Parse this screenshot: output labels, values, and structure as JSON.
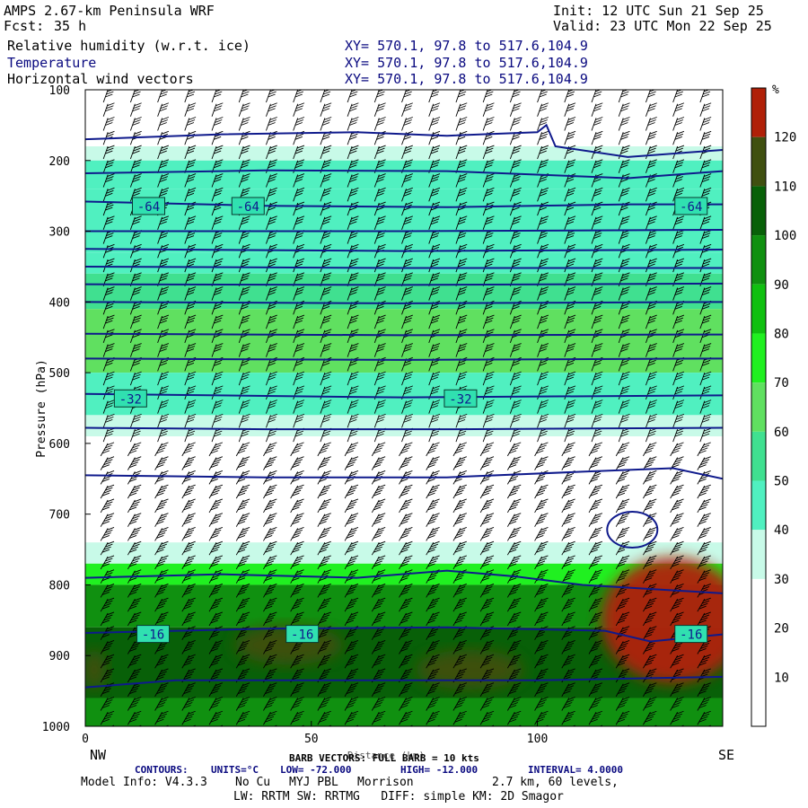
{
  "header": {
    "title": "AMPS 2.67-km Peninsula WRF",
    "fcst_label": "Fcst:",
    "fcst_value": "35 h",
    "init": "Init: 12 UTC Sun 21 Sep 25",
    "valid": "Valid: 23 UTC Mon 22 Sep 25"
  },
  "fields": [
    {
      "name": "Relative humidity (w.r.t. ice)",
      "xy": "XY= 570.1, 97.8 to 517.6,104.9"
    },
    {
      "name": "Temperature",
      "xy": "XY= 570.1, 97.8 to 517.6,104.9"
    },
    {
      "name": "Horizontal wind vectors",
      "xy": "XY= 570.1, 97.8 to 517.6,104.9"
    }
  ],
  "footer": {
    "nw": "NW",
    "se": "SE",
    "barb_label": "BARB VECTORS: FULL BARB = 10 kts",
    "xaxis_label": "Distance (km)",
    "contours_label": "CONTOURS:",
    "units": "UNITS=°C",
    "low": "LOW= -72.000",
    "high": "HIGH= -12.000",
    "interval": "INTERVAL= 4.0000",
    "model_info": "Model Info: V4.3.3",
    "cu": "No Cu",
    "pbl": "MYJ PBL",
    "mp": "Morrison",
    "grid": "2.7 km, 60 levels,",
    "line2": "LW: RRTM SW: RRTMG   DIFF: simple KM: 2D Smagor"
  },
  "colors": {
    "contour": "#0f1a8c",
    "label_box": "#30e0b0",
    "bands": [
      "#ffffff",
      "#ffffff",
      "#ffffff",
      "#c8fae8",
      "#50f0c0",
      "#40e090",
      "#60e060",
      "#20f020",
      "#10c010",
      "#109010",
      "#086008",
      "#405010",
      "#b02008",
      "#ff0000"
    ]
  },
  "chart_data": {
    "type": "heatmap",
    "title": "Relative humidity (w.r.t. ice) cross-section",
    "xlabel": "Distance (km)",
    "ylabel": "Pressure (hPa)",
    "xlim": [
      0,
      141
    ],
    "ylim": [
      1000,
      100
    ],
    "xticks": [
      0,
      50,
      100
    ],
    "yticks": [
      100,
      200,
      300,
      400,
      500,
      600,
      700,
      800,
      900,
      1000
    ],
    "colorbar": {
      "unit": "%",
      "levels": [
        10,
        20,
        30,
        40,
        50,
        60,
        70,
        80,
        90,
        100,
        110,
        120
      ]
    },
    "rh_layers": [
      {
        "p_top": 180,
        "p_bot": 200,
        "rh_pct": 32
      },
      {
        "p_top": 200,
        "p_bot": 240,
        "rh_pct": 42
      },
      {
        "p_top": 240,
        "p_bot": 330,
        "rh_pct": 48
      },
      {
        "p_top": 330,
        "p_bot": 360,
        "rh_pct": 42
      },
      {
        "p_top": 360,
        "p_bot": 410,
        "rh_pct": 50
      },
      {
        "p_top": 410,
        "p_bot": 500,
        "rh_pct": 66
      },
      {
        "p_top": 500,
        "p_bot": 560,
        "rh_pct": 46
      },
      {
        "p_top": 560,
        "p_bot": 590,
        "rh_pct": 36
      },
      {
        "p_top": 740,
        "p_bot": 770,
        "rh_pct": 35
      },
      {
        "p_top": 770,
        "p_bot": 800,
        "rh_pct": 78
      },
      {
        "p_top": 800,
        "p_bot": 860,
        "rh_pct": 95
      },
      {
        "p_top": 860,
        "p_bot": 960,
        "rh_pct": 108
      },
      {
        "p_top": 960,
        "p_bot": 1000,
        "rh_pct": 92
      }
    ],
    "rh_maxima": [
      {
        "x_km": 45,
        "p": 885,
        "rh_pct": 118
      },
      {
        "x_km": 85,
        "p": 920,
        "rh_pct": 118
      },
      {
        "x_km": 130,
        "p": 850,
        "rh_pct": 125
      },
      {
        "x_km": 2,
        "p": 920,
        "rh_pct": 115
      }
    ],
    "temperature_contours_c": [
      {
        "label": "-64",
        "label_x_km": [
          14,
          36,
          134
        ],
        "p": 265
      },
      {
        "label": "-32",
        "label_x_km": [
          10,
          83
        ],
        "p": 537
      },
      {
        "label": "-16",
        "label_x_km": [
          15,
          48,
          134
        ],
        "p": 870
      }
    ],
    "barb_columns_x_km": [
      5,
      11,
      17,
      23,
      29,
      35,
      41,
      47,
      53,
      59,
      65,
      71,
      77,
      83,
      89,
      95,
      101,
      107,
      113,
      119,
      125,
      131,
      137
    ]
  }
}
